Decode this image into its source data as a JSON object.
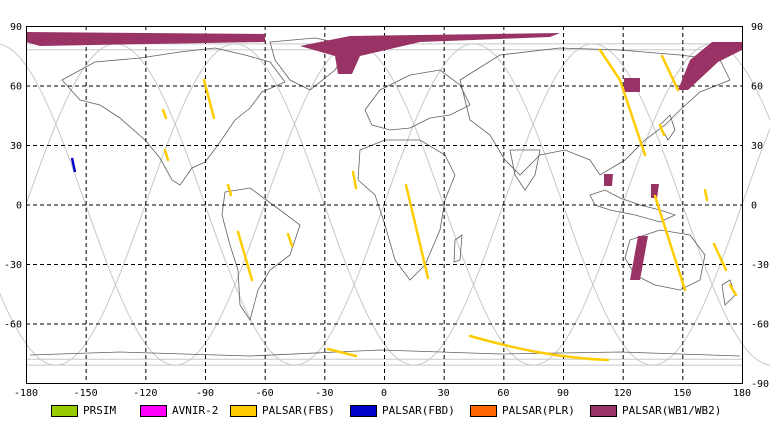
{
  "map": {
    "lon_ticks": [
      "-180",
      "-150",
      "-120",
      "-90",
      "-60",
      "-30",
      "0",
      "30",
      "60",
      "90",
      "120",
      "150",
      "180"
    ],
    "lat_ticks_right": [
      "90",
      "60",
      "30",
      "0",
      "-30",
      "-60",
      "-90"
    ],
    "lat_ticks_left": [
      "90",
      "60",
      "30",
      "0",
      "-30",
      "-60"
    ],
    "lon_range": [
      -180,
      180
    ],
    "lat_range": [
      -90,
      90
    ],
    "grid_lon_step": 30,
    "grid_lat_step": 30,
    "colors": {
      "background": "#ffffff",
      "coastline": "#606060",
      "orbit_track": "#c8c8c8",
      "grid": "#000000"
    }
  },
  "legend": {
    "items": [
      {
        "label": "PRSIM",
        "color": "#99cc00"
      },
      {
        "label": "AVNIR-2",
        "color": "#ff00ff"
      },
      {
        "label": "PALSAR(FBS)",
        "color": "#ffcc00"
      },
      {
        "label": "PALSAR(FBD)",
        "color": "#0000cc"
      },
      {
        "label": "PALSAR(PLR)",
        "color": "#ff6600"
      },
      {
        "label": "PALSAR(WB1/WB2)",
        "color": "#993366"
      }
    ]
  }
}
